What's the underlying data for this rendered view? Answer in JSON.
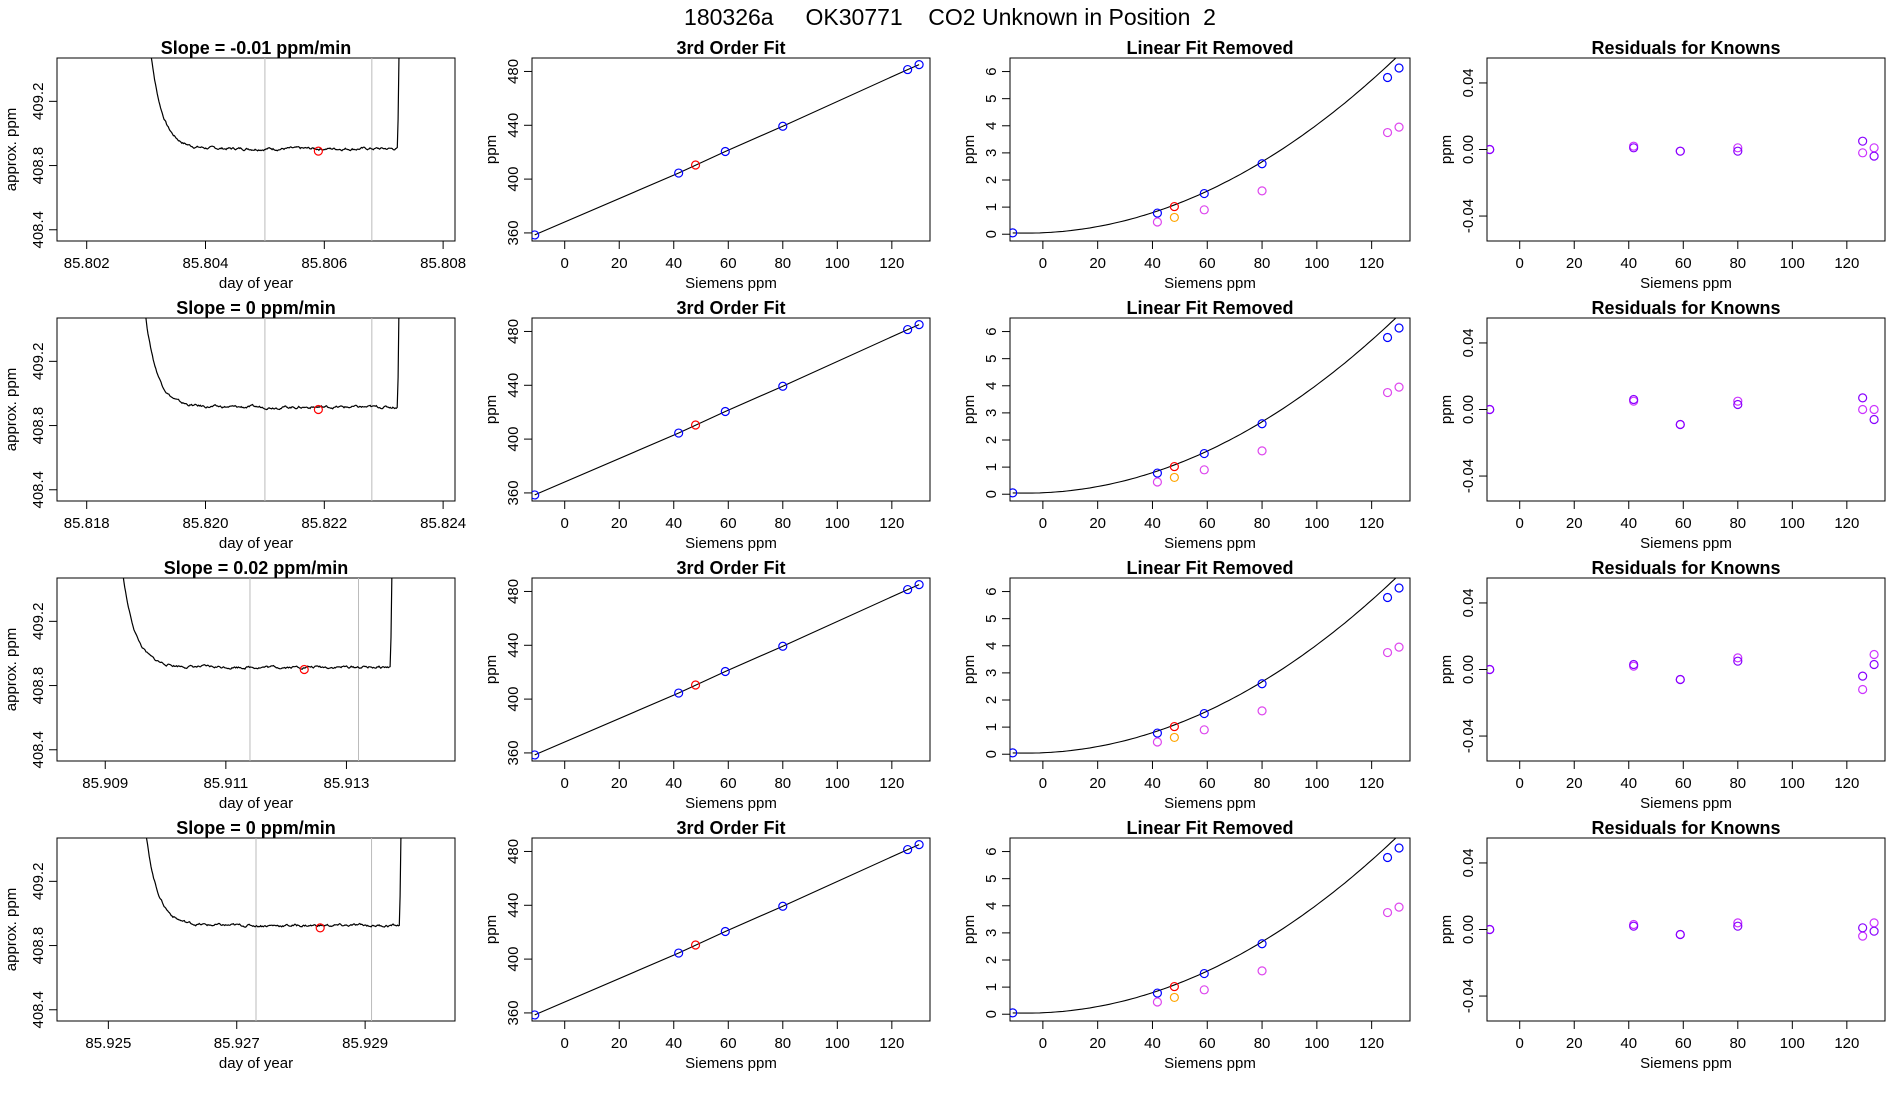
{
  "title": "180326a     OK30771    CO2 Unknown in Position  2",
  "colors": {
    "unknown": "#ff0000",
    "known": "#0000ff",
    "residual_a": "#8800ff",
    "residual_b": "#cc33ff",
    "linear_orange": "#ffa500",
    "linear_magenta": "#dd44ee",
    "line": "#000000",
    "window": "#bbbbbb"
  },
  "rows": [
    {
      "time_series": {
        "title": "Slope =  -0.01  ppm/min",
        "xlabel": "day of year",
        "ylabel": "approx. ppm",
        "xticks": [
          "85.802",
          "85.804",
          "85.806",
          "85.808"
        ],
        "xtick_values": [
          85.802,
          85.804,
          85.806,
          85.808
        ],
        "yticks": [
          "408.4",
          "408.8",
          "409.2"
        ],
        "ytick_values": [
          408.4,
          408.8,
          409.2
        ],
        "xlim": [
          85.8015,
          85.8082
        ],
        "ylim": [
          408.33,
          409.47
        ],
        "window": [
          85.805,
          85.8068
        ],
        "marker": [
          85.8059,
          408.89
        ],
        "trace_start": 85.803,
        "trace_end": 85.8073,
        "baseline": 408.89
      },
      "fit": {
        "title": "3rd Order Fit",
        "xlabel": "Siemens ppm",
        "ylabel": "ppm",
        "xticks": [
          "0",
          "20",
          "40",
          "60",
          "80",
          "100",
          "120"
        ],
        "xtick_values": [
          0,
          20,
          40,
          60,
          80,
          100,
          120
        ],
        "yticks": [
          "360",
          "400",
          "440",
          "480"
        ],
        "ytick_values": [
          360,
          400,
          440,
          480
        ],
        "xlim": [
          -12,
          134
        ],
        "ylim": [
          354,
          490
        ],
        "known_x": [
          -11,
          41.8,
          58.9,
          80,
          125.8,
          130
        ],
        "known_y": [
          358.5,
          404.5,
          420.5,
          439.3,
          481.4,
          485.1
        ],
        "unknown": [
          48,
          410.5
        ]
      },
      "linear_removed": {
        "title": "Linear Fit Removed",
        "xlabel": "Siemens ppm",
        "ylabel": "ppm",
        "xticks": [
          "0",
          "20",
          "40",
          "60",
          "80",
          "100",
          "120"
        ],
        "xtick_values": [
          0,
          20,
          40,
          60,
          80,
          100,
          120
        ],
        "yticks": [
          "0",
          "1",
          "2",
          "3",
          "4",
          "5",
          "6"
        ],
        "ytick_values": [
          0,
          1,
          2,
          3,
          4,
          5,
          6
        ],
        "xlim": [
          -12,
          134
        ],
        "ylim": [
          -0.25,
          6.5
        ],
        "known_y": [
          0.05,
          0.78,
          1.5,
          2.6,
          5.78,
          6.13
        ],
        "magenta_x": [
          41.8,
          58.9,
          80,
          125.8,
          130
        ],
        "magenta_y": [
          0.45,
          0.9,
          1.6,
          3.75,
          3.95
        ],
        "unknown": [
          48,
          1.02
        ],
        "orange": [
          48,
          0.62
        ]
      },
      "residuals": {
        "title": "Residuals for Knowns",
        "xlabel": "Siemens ppm",
        "ylabel": "ppm",
        "xticks": [
          "0",
          "20",
          "40",
          "60",
          "80",
          "100",
          "120"
        ],
        "xtick_values": [
          0,
          20,
          40,
          60,
          80,
          100,
          120
        ],
        "yticks": [
          "-0.04",
          "0.00",
          "0.04"
        ],
        "ytick_values": [
          -0.04,
          0.0,
          0.04
        ],
        "xlim": [
          -12,
          134
        ],
        "ylim": [
          -0.055,
          0.055
        ],
        "points_a": [
          [
            -11,
            0.0
          ],
          [
            41.8,
            0.001
          ],
          [
            58.9,
            -0.001
          ],
          [
            80,
            -0.001
          ],
          [
            125.8,
            0.005
          ],
          [
            130,
            -0.004
          ]
        ],
        "points_b": [
          [
            -11,
            0.0
          ],
          [
            41.8,
            0.002
          ],
          [
            58.9,
            -0.001
          ],
          [
            80,
            0.001
          ],
          [
            125.8,
            -0.002
          ],
          [
            130,
            0.001
          ]
        ]
      }
    },
    {
      "time_series": {
        "title": "Slope =  0  ppm/min",
        "xlabel": "day of year",
        "ylabel": "approx. ppm",
        "xticks": [
          "85.818",
          "85.820",
          "85.822",
          "85.824"
        ],
        "xtick_values": [
          85.818,
          85.82,
          85.822,
          85.824
        ],
        "yticks": [
          "408.4",
          "408.8",
          "409.2"
        ],
        "ytick_values": [
          408.4,
          408.8,
          409.2
        ],
        "xlim": [
          85.8175,
          85.8242
        ],
        "ylim": [
          408.33,
          409.47
        ],
        "window": [
          85.821,
          85.8228
        ],
        "marker": [
          85.8219,
          408.9
        ],
        "trace_start": 85.8189,
        "trace_end": 85.8233,
        "baseline": 408.9
      },
      "fit": {
        "title": "3rd Order Fit",
        "xlabel": "Siemens ppm",
        "ylabel": "ppm",
        "xticks": [
          "0",
          "20",
          "40",
          "60",
          "80",
          "100",
          "120"
        ],
        "xtick_values": [
          0,
          20,
          40,
          60,
          80,
          100,
          120
        ],
        "yticks": [
          "360",
          "400",
          "440",
          "480"
        ],
        "ytick_values": [
          360,
          400,
          440,
          480
        ],
        "xlim": [
          -12,
          134
        ],
        "ylim": [
          354,
          490
        ],
        "known_x": [
          -11,
          41.8,
          58.9,
          80,
          125.8,
          130
        ],
        "known_y": [
          358.5,
          404.5,
          420.5,
          439.3,
          481.4,
          485.1
        ],
        "unknown": [
          48,
          410.5
        ]
      },
      "linear_removed": {
        "title": "Linear Fit Removed",
        "xlabel": "Siemens ppm",
        "ylabel": "ppm",
        "xticks": [
          "0",
          "20",
          "40",
          "60",
          "80",
          "100",
          "120"
        ],
        "xtick_values": [
          0,
          20,
          40,
          60,
          80,
          100,
          120
        ],
        "yticks": [
          "0",
          "1",
          "2",
          "3",
          "4",
          "5",
          "6"
        ],
        "ytick_values": [
          0,
          1,
          2,
          3,
          4,
          5,
          6
        ],
        "xlim": [
          -12,
          134
        ],
        "ylim": [
          -0.25,
          6.5
        ],
        "known_y": [
          0.05,
          0.78,
          1.5,
          2.6,
          5.78,
          6.13
        ],
        "magenta_x": [
          41.8,
          58.9,
          80,
          125.8,
          130
        ],
        "magenta_y": [
          0.45,
          0.9,
          1.6,
          3.75,
          3.95
        ],
        "unknown": [
          48,
          1.02
        ],
        "orange": [
          48,
          0.62
        ]
      },
      "residuals": {
        "title": "Residuals for Knowns",
        "xlabel": "Siemens ppm",
        "ylabel": "ppm",
        "xticks": [
          "0",
          "20",
          "40",
          "60",
          "80",
          "100",
          "120"
        ],
        "xtick_values": [
          0,
          20,
          40,
          60,
          80,
          100,
          120
        ],
        "yticks": [
          "-0.04",
          "0.00",
          "0.04"
        ],
        "ytick_values": [
          -0.04,
          0.0,
          0.04
        ],
        "xlim": [
          -12,
          134
        ],
        "ylim": [
          -0.055,
          0.055
        ],
        "points_a": [
          [
            -11,
            0.0
          ],
          [
            41.8,
            0.006
          ],
          [
            58.9,
            -0.009
          ],
          [
            80,
            0.003
          ],
          [
            125.8,
            0.007
          ],
          [
            130,
            -0.006
          ]
        ],
        "points_b": [
          [
            -11,
            0.0
          ],
          [
            41.8,
            0.005
          ],
          [
            58.9,
            -0.009
          ],
          [
            80,
            0.005
          ],
          [
            125.8,
            0.0
          ],
          [
            130,
            0.0
          ]
        ]
      }
    },
    {
      "time_series": {
        "title": "Slope =  0.02  ppm/min",
        "xlabel": "day of year",
        "ylabel": "approx. ppm",
        "xticks": [
          "85.909",
          "85.911",
          "85.913"
        ],
        "xtick_values": [
          85.909,
          85.911,
          85.913
        ],
        "yticks": [
          "408.4",
          "408.8",
          "409.2"
        ],
        "ytick_values": [
          408.4,
          408.8,
          409.2
        ],
        "xlim": [
          85.9082,
          85.9148
        ],
        "ylim": [
          408.33,
          409.47
        ],
        "window": [
          85.9114,
          85.9132
        ],
        "marker": [
          85.9123,
          408.9
        ],
        "trace_start": 85.9092,
        "trace_end": 85.9138,
        "baseline": 408.9
      },
      "fit": {
        "title": "3rd Order Fit",
        "xlabel": "Siemens ppm",
        "ylabel": "ppm",
        "xticks": [
          "0",
          "20",
          "40",
          "60",
          "80",
          "100",
          "120"
        ],
        "xtick_values": [
          0,
          20,
          40,
          60,
          80,
          100,
          120
        ],
        "yticks": [
          "360",
          "400",
          "440",
          "480"
        ],
        "ytick_values": [
          360,
          400,
          440,
          480
        ],
        "xlim": [
          -12,
          134
        ],
        "ylim": [
          354,
          490
        ],
        "known_x": [
          -11,
          41.8,
          58.9,
          80,
          125.8,
          130
        ],
        "known_y": [
          358.5,
          404.5,
          420.5,
          439.3,
          481.4,
          485.1
        ],
        "unknown": [
          48,
          410.5
        ]
      },
      "linear_removed": {
        "title": "Linear Fit Removed",
        "xlabel": "Siemens ppm",
        "ylabel": "ppm",
        "xticks": [
          "0",
          "20",
          "40",
          "60",
          "80",
          "100",
          "120"
        ],
        "xtick_values": [
          0,
          20,
          40,
          60,
          80,
          100,
          120
        ],
        "yticks": [
          "0",
          "1",
          "2",
          "3",
          "4",
          "5",
          "6"
        ],
        "ytick_values": [
          0,
          1,
          2,
          3,
          4,
          5,
          6
        ],
        "xlim": [
          -12,
          134
        ],
        "ylim": [
          -0.25,
          6.5
        ],
        "known_y": [
          0.05,
          0.78,
          1.5,
          2.6,
          5.78,
          6.13
        ],
        "magenta_x": [
          41.8,
          58.9,
          80,
          125.8,
          130
        ],
        "magenta_y": [
          0.45,
          0.9,
          1.6,
          3.75,
          3.95
        ],
        "unknown": [
          48,
          1.02
        ],
        "orange": [
          48,
          0.62
        ]
      },
      "residuals": {
        "title": "Residuals for Knowns",
        "xlabel": "Siemens ppm",
        "ylabel": "ppm",
        "xticks": [
          "0",
          "20",
          "40",
          "60",
          "80",
          "100",
          "120"
        ],
        "xtick_values": [
          0,
          20,
          40,
          60,
          80,
          100,
          120
        ],
        "yticks": [
          "-0.04",
          "0.00",
          "0.04"
        ],
        "ytick_values": [
          -0.04,
          0.0,
          0.04
        ],
        "xlim": [
          -12,
          134
        ],
        "ylim": [
          -0.055,
          0.055
        ],
        "points_a": [
          [
            -11,
            0.0
          ],
          [
            41.8,
            0.003
          ],
          [
            58.9,
            -0.006
          ],
          [
            80,
            0.005
          ],
          [
            125.8,
            -0.004
          ],
          [
            130,
            0.003
          ]
        ],
        "points_b": [
          [
            -11,
            0.0
          ],
          [
            41.8,
            0.002
          ],
          [
            58.9,
            -0.006
          ],
          [
            80,
            0.007
          ],
          [
            125.8,
            -0.012
          ],
          [
            130,
            0.009
          ]
        ]
      }
    },
    {
      "time_series": {
        "title": "Slope =  0  ppm/min",
        "xlabel": "day of year",
        "ylabel": "approx. ppm",
        "xticks": [
          "85.925",
          "85.927",
          "85.929"
        ],
        "xtick_values": [
          85.925,
          85.927,
          85.929
        ],
        "yticks": [
          "408.4",
          "408.8",
          "409.2"
        ],
        "ytick_values": [
          408.4,
          408.8,
          409.2
        ],
        "xlim": [
          85.9242,
          85.9304
        ],
        "ylim": [
          408.33,
          409.47
        ],
        "window": [
          85.9273,
          85.9291
        ],
        "marker": [
          85.9283,
          408.91
        ],
        "trace_start": 85.9255,
        "trace_end": 85.9296,
        "baseline": 408.91
      },
      "fit": {
        "title": "3rd Order Fit",
        "xlabel": "Siemens ppm",
        "ylabel": "ppm",
        "xticks": [
          "0",
          "20",
          "40",
          "60",
          "80",
          "100",
          "120"
        ],
        "xtick_values": [
          0,
          20,
          40,
          60,
          80,
          100,
          120
        ],
        "yticks": [
          "360",
          "400",
          "440",
          "480"
        ],
        "ytick_values": [
          360,
          400,
          440,
          480
        ],
        "xlim": [
          -12,
          134
        ],
        "ylim": [
          354,
          490
        ],
        "known_x": [
          -11,
          41.8,
          58.9,
          80,
          125.8,
          130
        ],
        "known_y": [
          358.5,
          404.5,
          420.5,
          439.3,
          481.4,
          485.1
        ],
        "unknown": [
          48,
          410.5
        ]
      },
      "linear_removed": {
        "title": "Linear Fit Removed",
        "xlabel": "Siemens ppm",
        "ylabel": "ppm",
        "xticks": [
          "0",
          "20",
          "40",
          "60",
          "80",
          "100",
          "120"
        ],
        "xtick_values": [
          0,
          20,
          40,
          60,
          80,
          100,
          120
        ],
        "yticks": [
          "0",
          "1",
          "2",
          "3",
          "4",
          "5",
          "6"
        ],
        "ytick_values": [
          0,
          1,
          2,
          3,
          4,
          5,
          6
        ],
        "xlim": [
          -12,
          134
        ],
        "ylim": [
          -0.25,
          6.5
        ],
        "known_y": [
          0.05,
          0.78,
          1.5,
          2.6,
          5.78,
          6.13
        ],
        "magenta_x": [
          41.8,
          58.9,
          80,
          125.8,
          130
        ],
        "magenta_y": [
          0.45,
          0.9,
          1.6,
          3.75,
          3.95
        ],
        "unknown": [
          48,
          1.02
        ],
        "orange": [
          48,
          0.62
        ]
      },
      "residuals": {
        "title": "Residuals for Knowns",
        "xlabel": "Siemens ppm",
        "ylabel": "ppm",
        "xticks": [
          "0",
          "20",
          "40",
          "60",
          "80",
          "100",
          "120"
        ],
        "xtick_values": [
          0,
          20,
          40,
          60,
          80,
          100,
          120
        ],
        "yticks": [
          "-0.04",
          "0.00",
          "0.04"
        ],
        "ytick_values": [
          -0.04,
          0.0,
          0.04
        ],
        "xlim": [
          -12,
          134
        ],
        "ylim": [
          -0.055,
          0.055
        ],
        "points_a": [
          [
            -11,
            0.0
          ],
          [
            41.8,
            0.002
          ],
          [
            58.9,
            -0.003
          ],
          [
            80,
            0.002
          ],
          [
            125.8,
            0.001
          ],
          [
            130,
            -0.001
          ]
        ],
        "points_b": [
          [
            -11,
            0.0
          ],
          [
            41.8,
            0.003
          ],
          [
            58.9,
            -0.003
          ],
          [
            80,
            0.004
          ],
          [
            125.8,
            -0.004
          ],
          [
            130,
            0.004
          ]
        ]
      }
    }
  ]
}
